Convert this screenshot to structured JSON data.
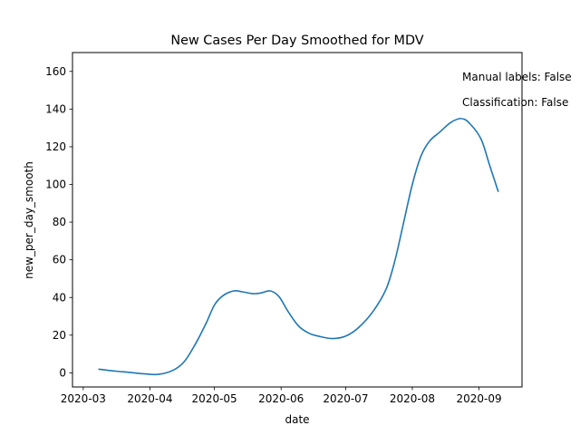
{
  "chart_data": {
    "type": "line",
    "title": "New Cases Per Day Smoothed for MDV",
    "xlabel": "date",
    "ylabel": "new_per_day_smooth",
    "x_ticks": [
      "2020-03",
      "2020-04",
      "2020-05",
      "2020-06",
      "2020-07",
      "2020-08",
      "2020-09"
    ],
    "y_ticks": [
      "0",
      "20",
      "40",
      "60",
      "80",
      "100",
      "120",
      "140",
      "160"
    ],
    "xlim": [
      "2020-02-25",
      "2020-09-21"
    ],
    "ylim": [
      -7.5,
      170
    ],
    "grid": false,
    "series": [
      {
        "color": "#1f77b4",
        "points": [
          [
            "2020-03-08",
            2
          ],
          [
            "2020-03-15",
            1
          ],
          [
            "2020-03-22",
            0.3
          ],
          [
            "2020-03-29",
            -0.5
          ],
          [
            "2020-04-05",
            -0.8
          ],
          [
            "2020-04-12",
            1.5
          ],
          [
            "2020-04-17",
            6
          ],
          [
            "2020-04-22",
            15
          ],
          [
            "2020-04-27",
            26
          ],
          [
            "2020-05-01",
            36
          ],
          [
            "2020-05-05",
            41
          ],
          [
            "2020-05-10",
            43.5
          ],
          [
            "2020-05-14",
            43
          ],
          [
            "2020-05-19",
            42
          ],
          [
            "2020-05-23",
            42.5
          ],
          [
            "2020-05-27",
            43.5
          ],
          [
            "2020-05-31",
            40.5
          ],
          [
            "2020-06-04",
            33
          ],
          [
            "2020-06-09",
            25
          ],
          [
            "2020-06-14",
            21
          ],
          [
            "2020-06-19",
            19.3
          ],
          [
            "2020-06-25",
            18.2
          ],
          [
            "2020-07-01",
            19.5
          ],
          [
            "2020-07-07",
            24
          ],
          [
            "2020-07-14",
            33
          ],
          [
            "2020-07-20",
            45
          ],
          [
            "2020-07-24",
            60
          ],
          [
            "2020-07-28",
            80
          ],
          [
            "2020-08-01",
            100
          ],
          [
            "2020-08-05",
            115
          ],
          [
            "2020-08-09",
            123
          ],
          [
            "2020-08-14",
            128
          ],
          [
            "2020-08-19",
            133
          ],
          [
            "2020-08-24",
            135
          ],
          [
            "2020-08-28",
            132
          ],
          [
            "2020-09-02",
            124
          ],
          [
            "2020-09-06",
            110
          ],
          [
            "2020-09-10",
            96
          ]
        ]
      }
    ],
    "annotations": [
      "Manual labels: False",
      "Classification: False"
    ]
  }
}
